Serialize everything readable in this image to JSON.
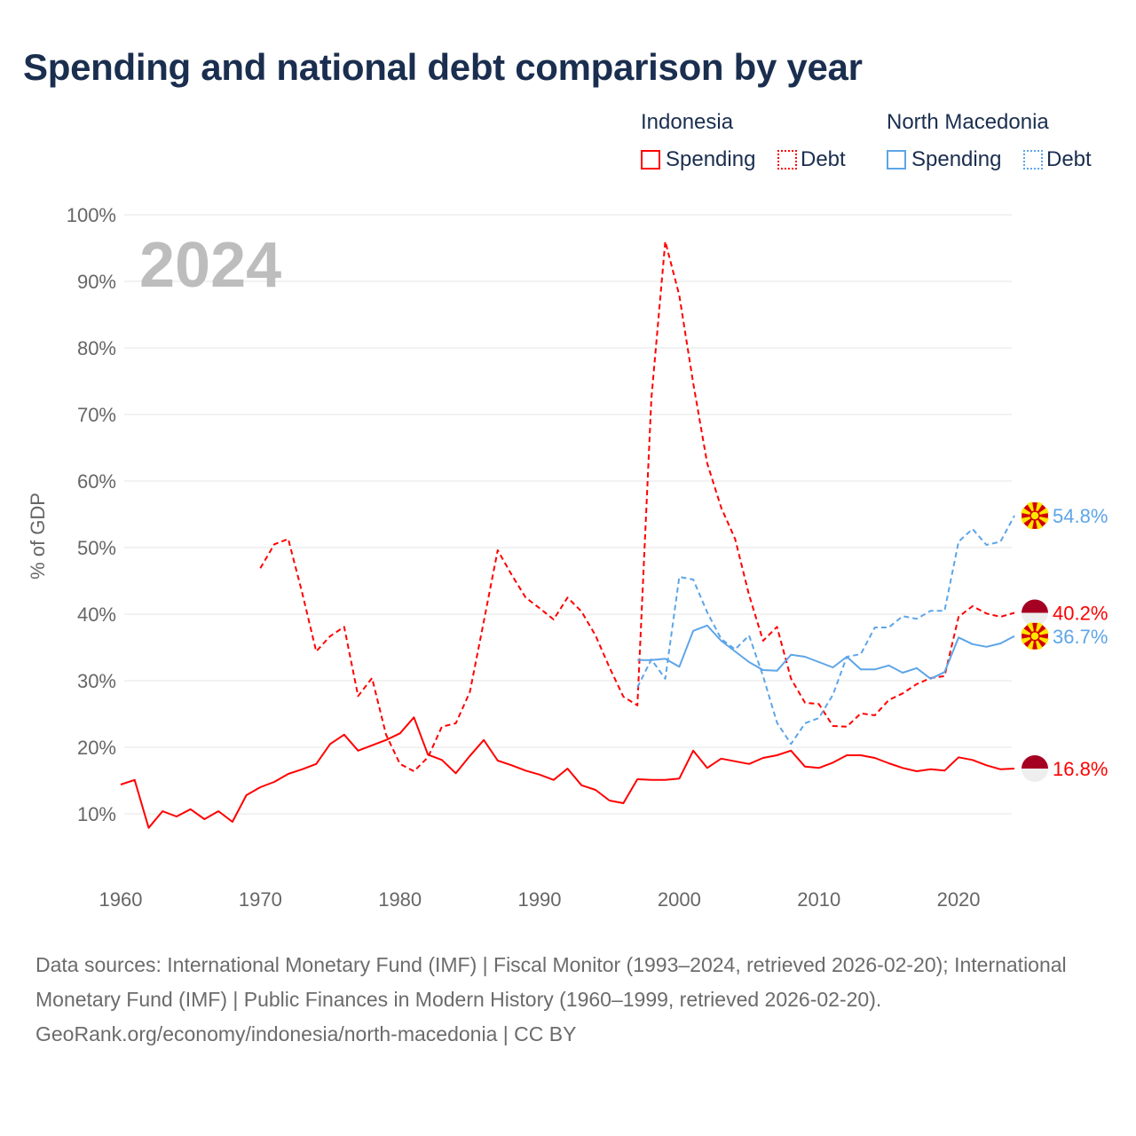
{
  "title": "Spending and national debt comparison by year",
  "legend": {
    "groups": [
      {
        "country": "Indonesia",
        "items": [
          {
            "label": "Spending",
            "style": "solid",
            "color": "#ff0000"
          },
          {
            "label": "Debt",
            "style": "dotted",
            "color": "#ff0000"
          }
        ]
      },
      {
        "country": "North Macedonia",
        "items": [
          {
            "label": "Spending",
            "style": "solid",
            "color": "#5da5e8"
          },
          {
            "label": "Debt",
            "style": "dotted",
            "color": "#5da5e8"
          }
        ]
      }
    ]
  },
  "footer": {
    "sources": "Data sources: International Monetary Fund (IMF) | Fiscal Monitor (1993–2024, retrieved 2026-02-20); International Monetary Fund (IMF) | Public Finances in Modern History (1960–1999, retrieved 2026-02-20).",
    "credit": "GeoRank.org/economy/indonesia/north-macedonia | CC BY"
  },
  "chart_data": {
    "type": "line",
    "title": "Spending and national debt comparison by year",
    "year_label": "2024",
    "ylabel": "% of GDP",
    "xlabel": "",
    "xlim": [
      1960,
      2024
    ],
    "ylim": [
      0,
      100
    ],
    "x_ticks": [
      "1960",
      "1970",
      "1980",
      "1990",
      "2000",
      "2010",
      "2020"
    ],
    "x_tick_values": [
      1960,
      1970,
      1980,
      1990,
      2000,
      2010,
      2020
    ],
    "y_ticks": [
      "10%",
      "20%",
      "30%",
      "40%",
      "50%",
      "60%",
      "70%",
      "80%",
      "90%",
      "100%"
    ],
    "y_tick_values": [
      10,
      20,
      30,
      40,
      50,
      60,
      70,
      80,
      90,
      100
    ],
    "grid": true,
    "legend_position": "top-right",
    "series": [
      {
        "name": "Indonesia Spending",
        "country": "Indonesia",
        "color": "#ff0000",
        "dash": false,
        "start": 1960,
        "end_label": "16.8%",
        "flag": "indonesia",
        "values": [
          14.4,
          15.1,
          7.9,
          10.4,
          9.6,
          10.7,
          9.2,
          10.4,
          8.8,
          12.8,
          14.0,
          14.8,
          16.0,
          16.7,
          17.5,
          20.5,
          21.9,
          19.5,
          20.3,
          21.1,
          22.1,
          24.5,
          18.9,
          18.1,
          16.1,
          18.7,
          21.1,
          18.0,
          17.3,
          16.5,
          15.9,
          15.1,
          16.8,
          14.3,
          13.6,
          12.0,
          11.6,
          15.2,
          15.1,
          15.1,
          15.3,
          19.5,
          16.9,
          18.3,
          17.9,
          17.5,
          18.4,
          18.8,
          19.5,
          17.1,
          16.9,
          17.7,
          18.8,
          18.8,
          18.4,
          17.6,
          16.9,
          16.4,
          16.7,
          16.5,
          18.5,
          18.1,
          17.3,
          16.7,
          16.8
        ]
      },
      {
        "name": "Indonesia Debt",
        "country": "Indonesia",
        "color": "#ff0000",
        "dash": true,
        "start": 1970,
        "end_label": "40.2%",
        "flag": "indonesia",
        "values": [
          46.9,
          50.5,
          51.3,
          43.2,
          34.4,
          36.7,
          38.1,
          27.7,
          30.4,
          21.9,
          17.5,
          16.4,
          18.5,
          23.1,
          23.6,
          28.3,
          38.9,
          49.6,
          45.9,
          42.5,
          40.9,
          39.2,
          42.5,
          40.4,
          36.8,
          32.0,
          27.6,
          26.3,
          72.3,
          96.0,
          87.9,
          74.7,
          62.7,
          56.0,
          51.3,
          42.9,
          36.0,
          38.1,
          30.3,
          26.7,
          26.5,
          23.2,
          23.1,
          25.1,
          24.8,
          27.1,
          28.1,
          29.5,
          30.4,
          30.7,
          39.6,
          41.2,
          40.1,
          39.6,
          40.2
        ]
      },
      {
        "name": "North Macedonia Spending",
        "country": "North Macedonia",
        "color": "#5da5e8",
        "dash": false,
        "start": 1997,
        "end_label": "36.7%",
        "flag": "north-macedonia",
        "values": [
          33.1,
          33.1,
          33.3,
          32.1,
          37.5,
          38.3,
          36.0,
          34.4,
          32.8,
          31.6,
          31.5,
          33.9,
          33.6,
          32.8,
          32.0,
          33.6,
          31.7,
          31.7,
          32.3,
          31.2,
          31.9,
          30.3,
          31.3,
          36.5,
          35.5,
          35.1,
          35.6,
          36.7
        ]
      },
      {
        "name": "North Macedonia Debt",
        "country": "North Macedonia",
        "color": "#5da5e8",
        "dash": true,
        "start": 1997,
        "end_label": "54.8%",
        "flag": "north-macedonia",
        "values": [
          29.0,
          33.2,
          30.3,
          45.6,
          45.2,
          40.3,
          36.3,
          34.7,
          36.8,
          30.7,
          23.7,
          20.5,
          23.6,
          24.4,
          27.9,
          33.6,
          34.0,
          38.0,
          38.0,
          39.7,
          39.3,
          40.5,
          40.5,
          50.9,
          52.8,
          50.4,
          50.9,
          54.8
        ]
      }
    ]
  }
}
